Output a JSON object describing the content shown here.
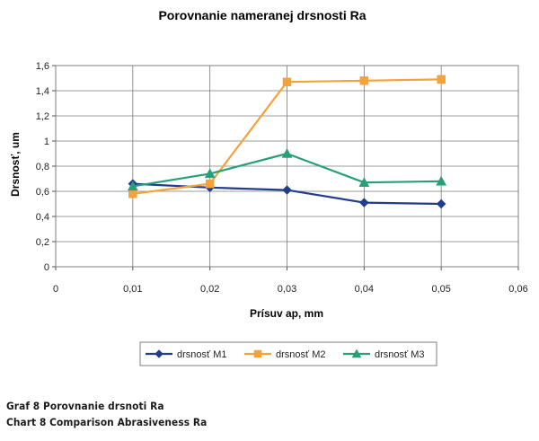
{
  "chart_data": {
    "type": "line",
    "title": "Porovnanie nameranej drsnosti Ra",
    "xlabel": "Prísuv ap, mm",
    "ylabel": "Drsnosť, um",
    "xlim": [
      0,
      0.06
    ],
    "ylim": [
      0,
      1.6
    ],
    "x_ticks": [
      "0",
      "0,01",
      "0,02",
      "0,03",
      "0,04",
      "0,05",
      "0,06"
    ],
    "y_ticks": [
      "0",
      "0,2",
      "0,4",
      "0,6",
      "0,8",
      "1",
      "1,2",
      "1,4",
      "1,6"
    ],
    "x": [
      0.01,
      0.02,
      0.03,
      0.04,
      0.05
    ],
    "grid": true,
    "legend_position": "bottom",
    "series": [
      {
        "name": "drsnosť M1",
        "values": [
          0.66,
          0.63,
          0.61,
          0.51,
          0.5
        ],
        "color": "#1F3D8C",
        "marker": "diamond"
      },
      {
        "name": "drsnosť M2",
        "values": [
          0.58,
          0.66,
          1.47,
          1.48,
          1.49
        ],
        "color": "#F4A23A",
        "marker": "square"
      },
      {
        "name": "drsnosť M3",
        "values": [
          0.64,
          0.74,
          0.9,
          0.67,
          0.68
        ],
        "color": "#27A07A",
        "marker": "triangle"
      }
    ]
  },
  "captions": {
    "line1": "Graf 8 Porovnanie drsnoti Ra",
    "line2": "Chart 8 Comparison Abrasiveness Ra"
  }
}
